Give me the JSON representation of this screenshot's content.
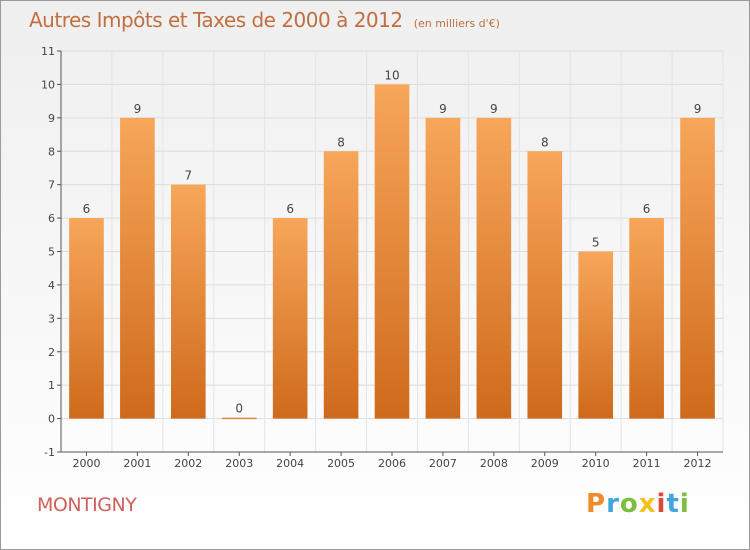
{
  "header": {
    "title": "Autres Impôts et Taxes de 2000 à 2012",
    "subtitle": "(en milliers d'€)"
  },
  "footer": {
    "commune": "MONTIGNY",
    "logo": "Proxiti"
  },
  "colors": {
    "bar_top": "#f7a65a",
    "bar_bottom": "#cf6a1c",
    "title": "#c07040",
    "commune": "#d0605a"
  },
  "chart_data": {
    "type": "bar",
    "categories": [
      "2000",
      "2001",
      "2002",
      "2003",
      "2004",
      "2005",
      "2006",
      "2007",
      "2008",
      "2009",
      "2010",
      "2011",
      "2012"
    ],
    "values": [
      6,
      9,
      7,
      0,
      6,
      8,
      10,
      9,
      9,
      8,
      5,
      6,
      9
    ],
    "data_labels": [
      "6",
      "9",
      "7",
      "0",
      "6",
      "8",
      "10",
      "9",
      "9",
      "8",
      "5",
      "6",
      "9"
    ],
    "yticks": [
      "-1",
      "0",
      "1",
      "2",
      "3",
      "4",
      "5",
      "6",
      "7",
      "8",
      "9",
      "10",
      "11"
    ],
    "ylim": [
      -1,
      11
    ],
    "grid": true,
    "legend": "none"
  }
}
